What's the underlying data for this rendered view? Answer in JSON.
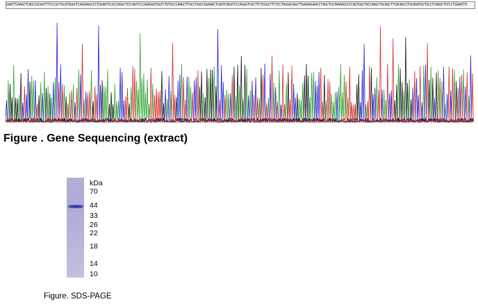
{
  "sequence": {
    "bases": "GAATTCAAGCTCAGCCGCAGTTTCCCGCTGCATGGGCTCAGGAGGCCCTGGAATCCGCCAGGCTCCCAGTCCCGGAGGGTGGTCTGTGCCCAAGCTTGCCTGGCCGGAAACTCAGTCAGGTCCCAGGGTCGCTTCTCGGCTTCTCCTGGGGCAGCTTGAGAGGAACCTAGCTCGTAAAGGCCCCAGTGGCTACCAAGCTGCAGCTTCACAGCCTGCAGATGCTGCCTCAAGCTGTCCTGGAATTC",
    "caption": "Figure . Gene Sequencing (extract)",
    "channel_colors": {
      "A": "#2ca02c",
      "C": "#1f1fd6",
      "G": "#111111",
      "T": "#d62728"
    }
  },
  "gel": {
    "ladder_unit": "kDa",
    "ladder": [
      "70",
      "44",
      "33",
      "26",
      "22",
      "18",
      "14",
      "10"
    ],
    "band_marker": "44",
    "caption": "Figure. SDS-PAGE"
  }
}
